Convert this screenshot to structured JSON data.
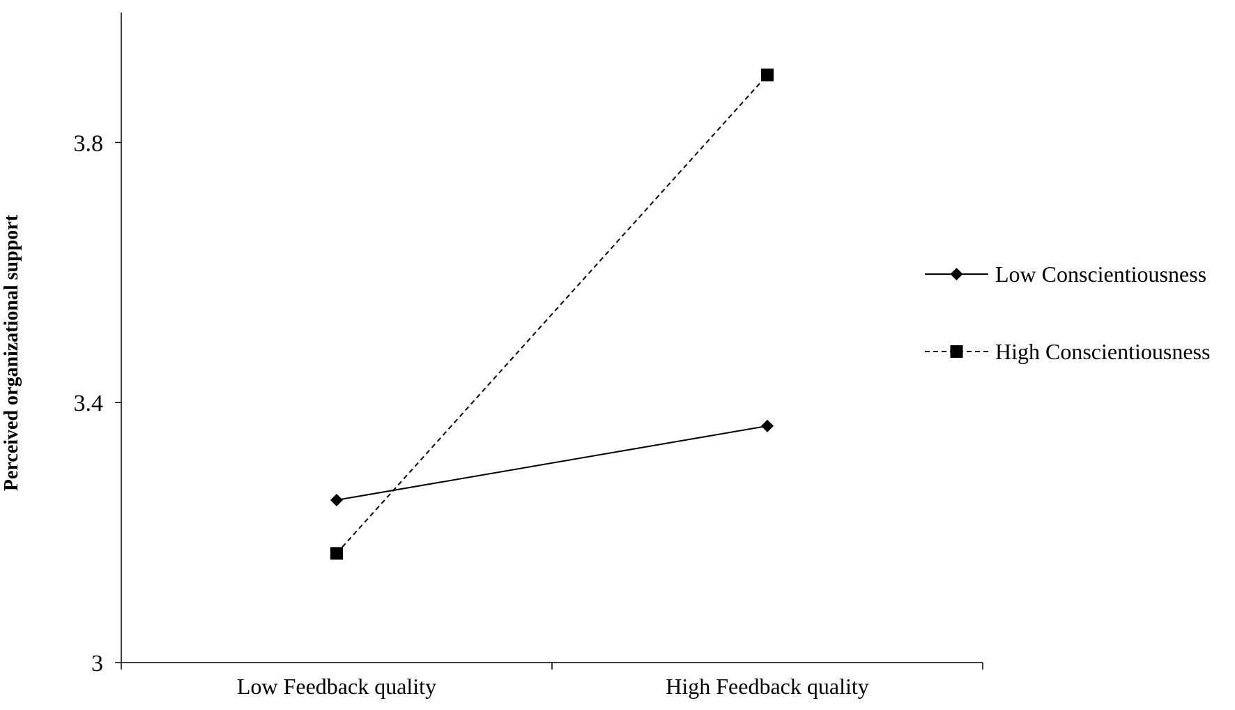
{
  "chart_data": {
    "type": "line",
    "title": "",
    "xlabel": "",
    "ylabel": "Perceived organizational support",
    "categories": [
      "Low Feedback quality",
      "High Feedback quality"
    ],
    "ylim": [
      3,
      4.0
    ],
    "yticks": [
      "3",
      "3.4",
      "3.8"
    ],
    "grid": false,
    "legend_position": "right",
    "series": [
      {
        "name": "Low Conscientiousness",
        "values": [
          3.25,
          3.364
        ],
        "marker": "diamond",
        "line_style": "solid",
        "color": "#000000"
      },
      {
        "name": "High Conscientiousness",
        "values": [
          3.168,
          3.904
        ],
        "marker": "square",
        "line_style": "dashed",
        "color": "#000000"
      }
    ]
  }
}
